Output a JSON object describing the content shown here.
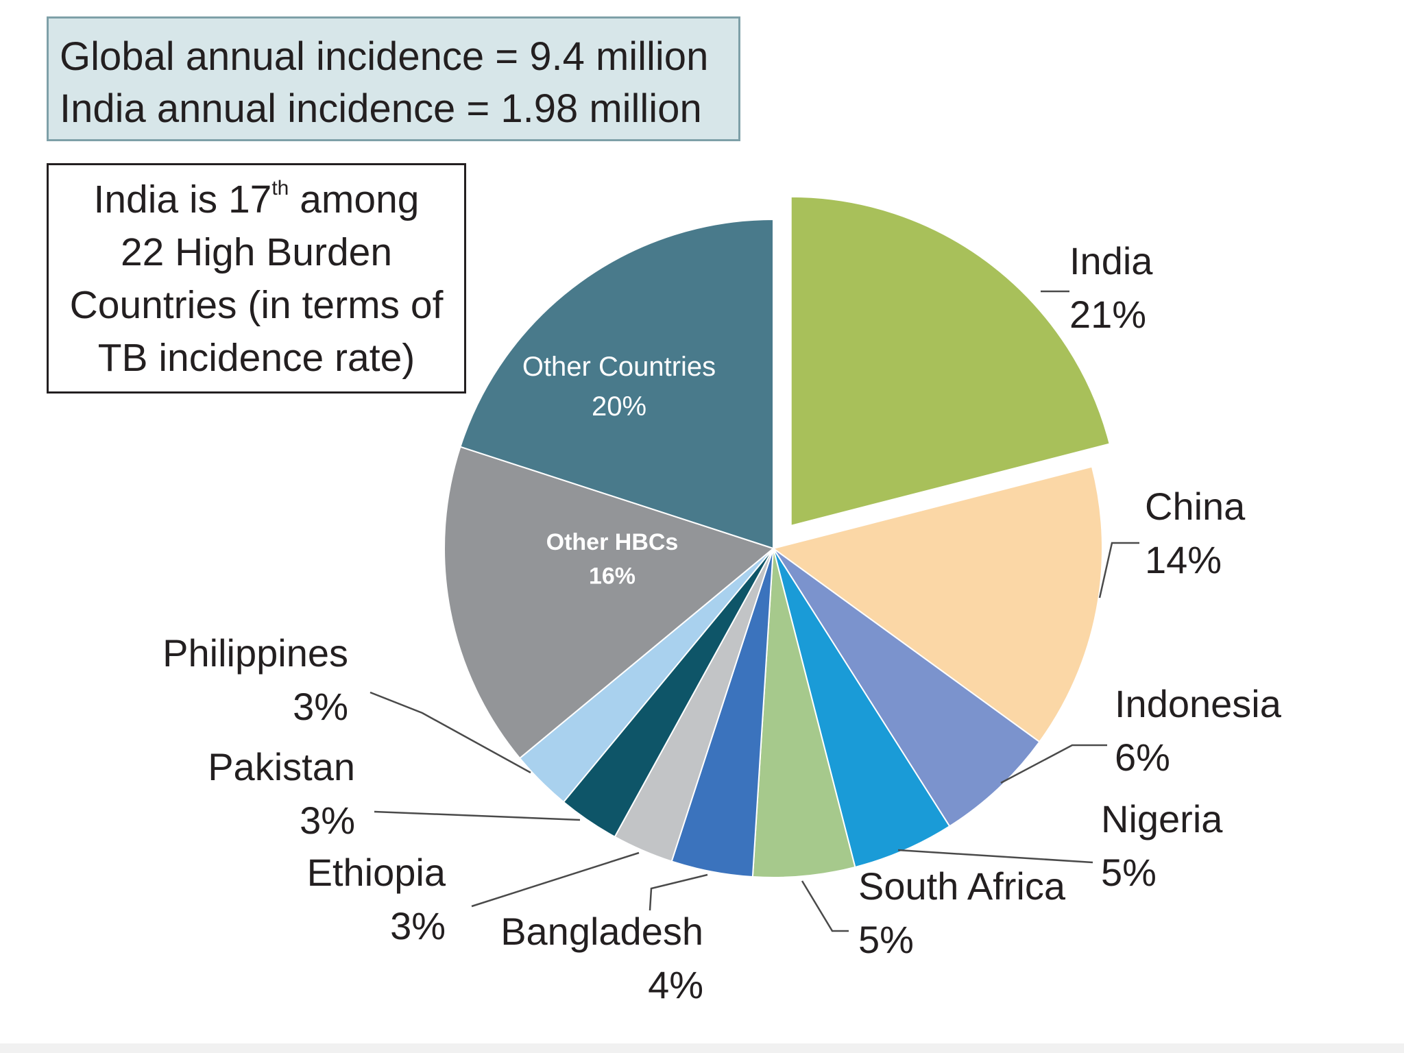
{
  "stats": {
    "global_line": "Global annual incidence = 9.4 million",
    "india_line": "India annual incidence = 1.98 million"
  },
  "rank_note": {
    "line1_prefix": "India is 17",
    "line1_sup": "th",
    "line1_suffix": " among",
    "line2": "22 High Burden",
    "line3": "Countries (in terms of",
    "line4": "TB incidence rate)"
  },
  "chart_data": {
    "type": "pie",
    "start_angle_deg": 0,
    "direction": "clockwise",
    "exploded": [
      "India"
    ],
    "slices": [
      {
        "name": "India",
        "value": 21,
        "label": "21%",
        "color": "#a8c05a"
      },
      {
        "name": "China",
        "value": 14,
        "label": "14%",
        "color": "#fbd7a6"
      },
      {
        "name": "Indonesia",
        "value": 6,
        "label": "6%",
        "color": "#7b93cd"
      },
      {
        "name": "Nigeria",
        "value": 5,
        "label": "5%",
        "color": "#1a9bd7"
      },
      {
        "name": "South Africa",
        "value": 5,
        "label": "5%",
        "color": "#a6c98c"
      },
      {
        "name": "Bangladesh",
        "value": 4,
        "label": "4%",
        "color": "#3b73bd"
      },
      {
        "name": "Ethiopia",
        "value": 3,
        "label": "3%",
        "color": "#c2c4c6"
      },
      {
        "name": "Pakistan",
        "value": 3,
        "label": "3%",
        "color": "#0e5568"
      },
      {
        "name": "Philippines",
        "value": 3,
        "label": "3%",
        "color": "#a9d1ee"
      },
      {
        "name": "Other HBCs",
        "value": 16,
        "label": "16%",
        "color": "#939598"
      },
      {
        "name": "Other Countries",
        "value": 20,
        "label": "20%",
        "color": "#497a8b"
      }
    ]
  }
}
